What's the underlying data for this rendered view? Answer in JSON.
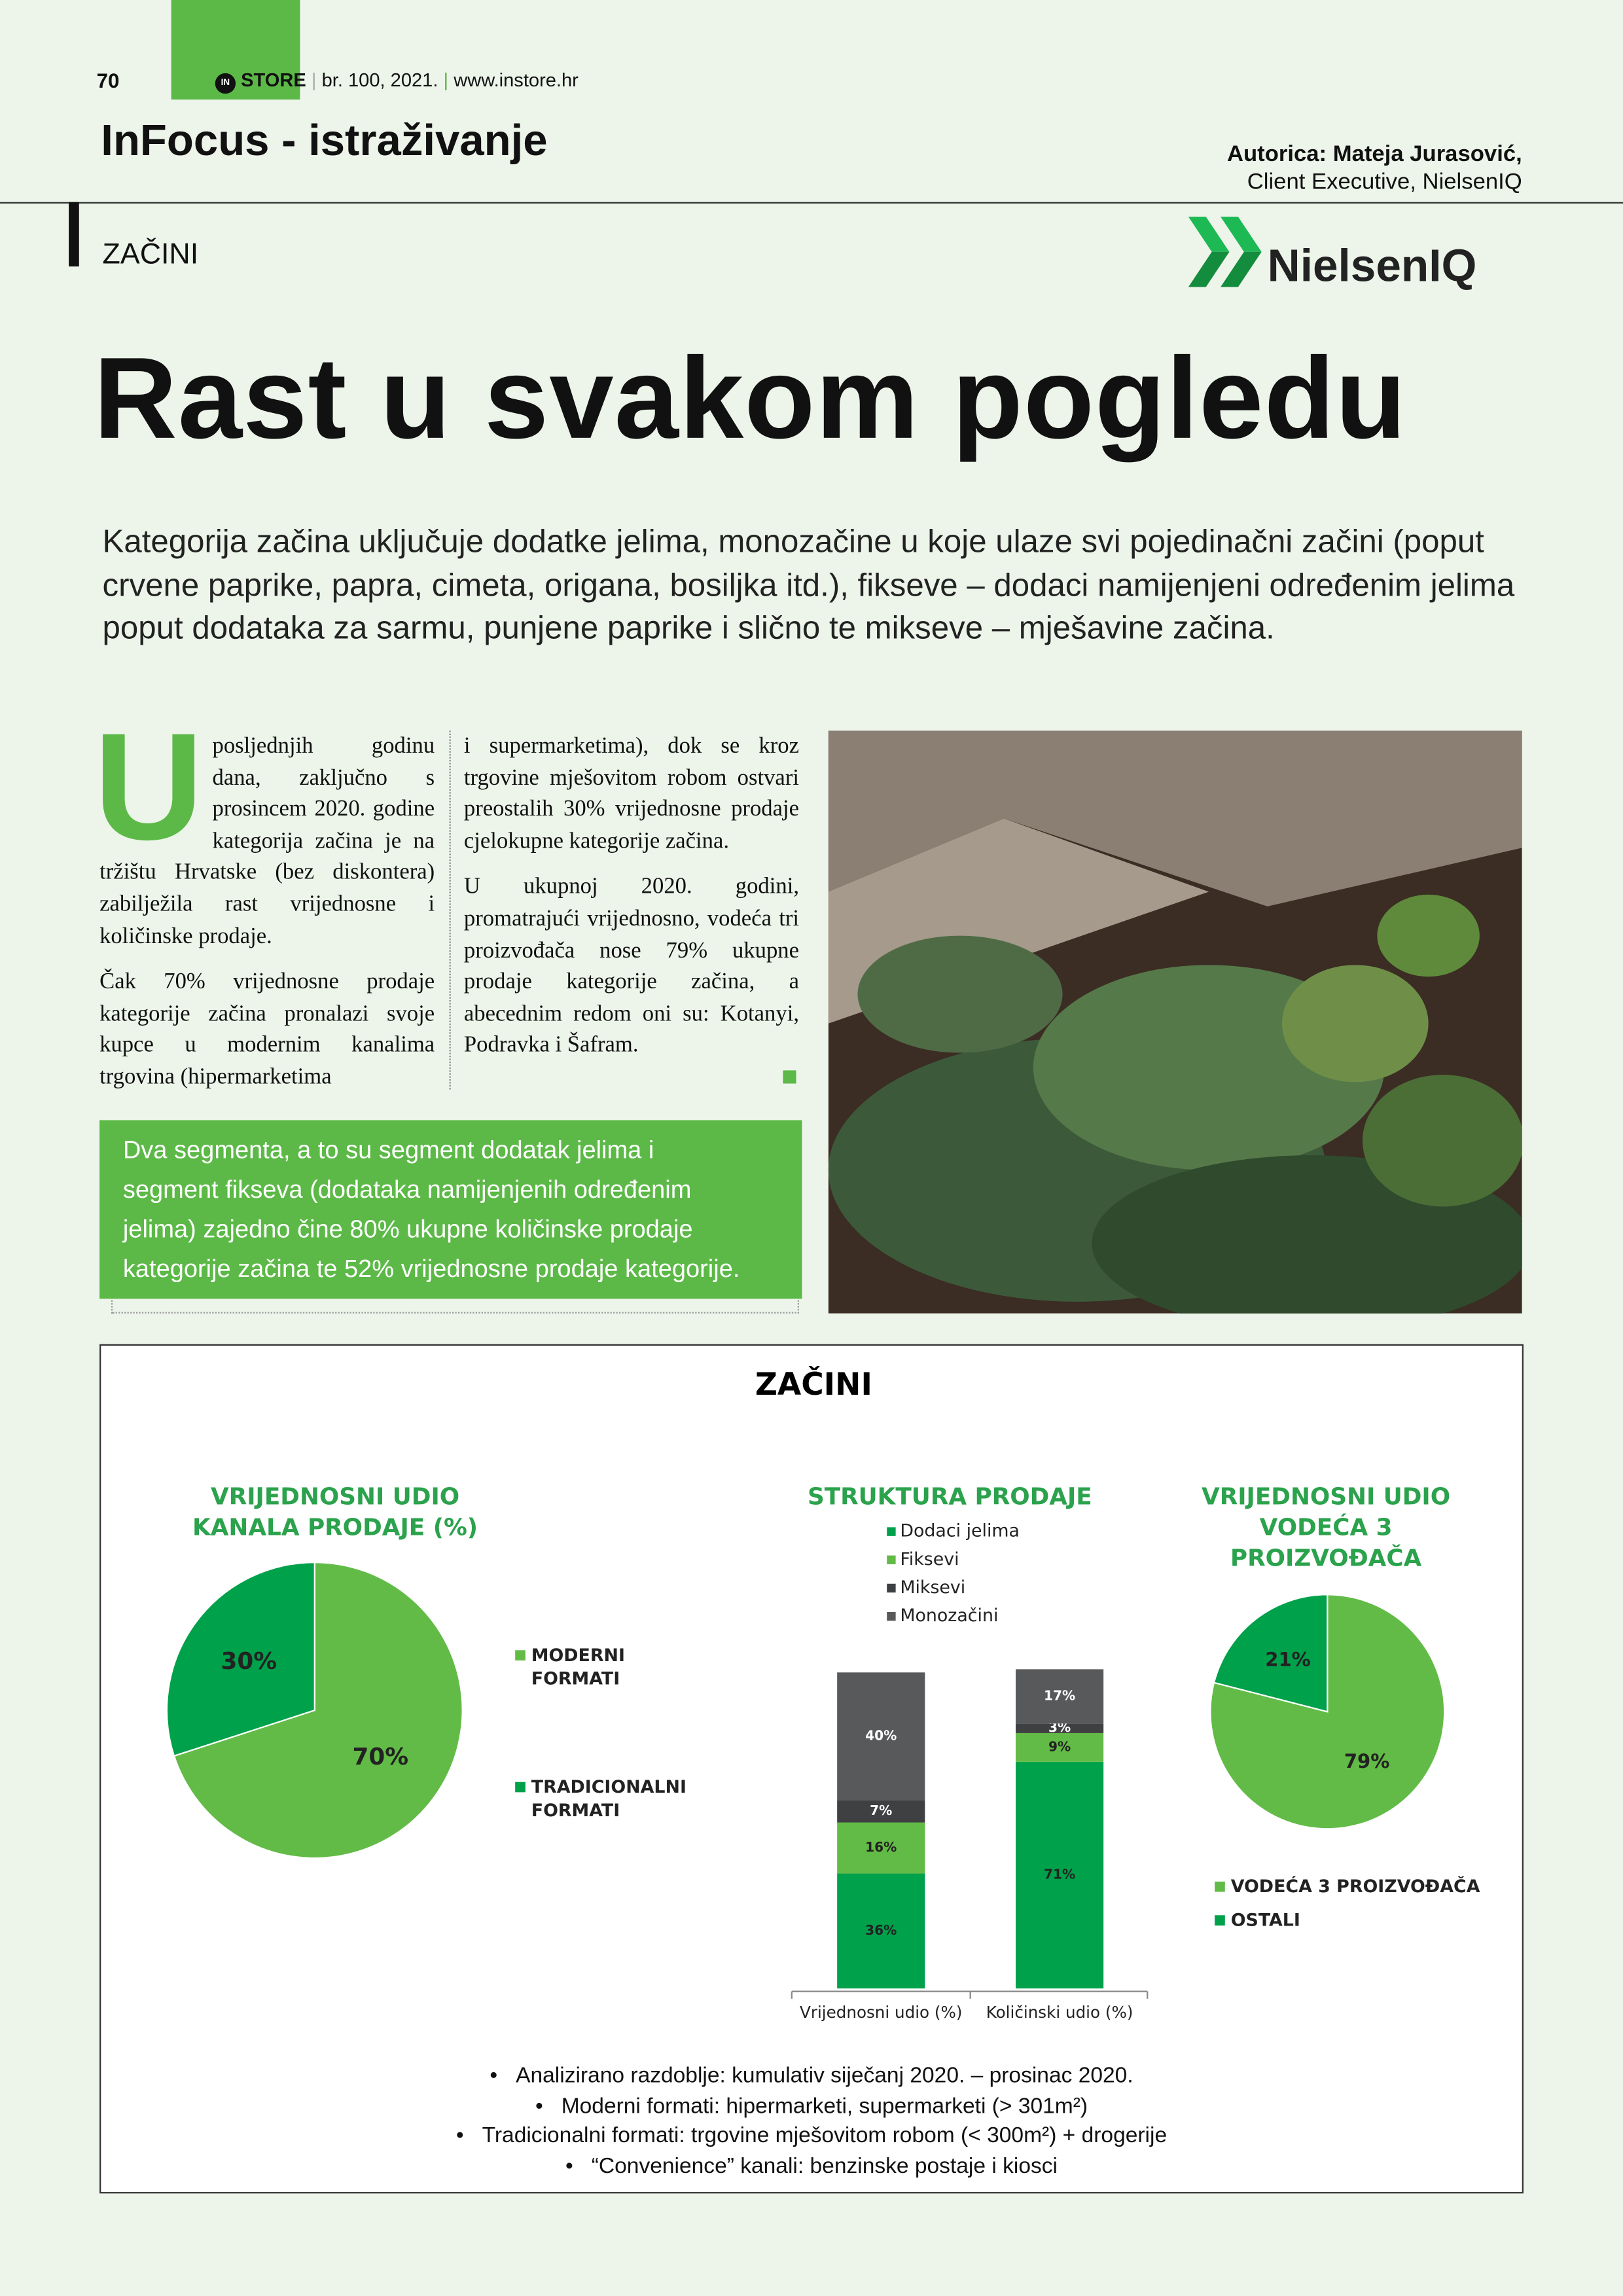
{
  "header": {
    "page_number": "70",
    "logo_in": "IN",
    "logo_store": "STORE",
    "issue": "br. 100, 2021.",
    "website": "www.instore.hr",
    "section": "InFocus - istraživanje",
    "author": "Autorica: Mateja Jurasović,",
    "author_role": "Client Executive, NielsenIQ",
    "category": "ZAČINI",
    "brand": "NielsenIQ"
  },
  "article": {
    "title": "Rast u svakom pogledu",
    "lead": "Kategorija začina uključuje dodatke jelima, monozačine u koje ulaze svi pojedinačni začini (poput crvene paprike, papra, cimeta, origana, bosiljka itd.), fikseve – dodaci namijenjeni određenim jelima poput dodataka za sarmu, punjene paprike i slično te mikseve – mješavine začina.",
    "drop_cap": "U",
    "column_1": [
      "posljednjih godinu dana, zaključno s prosincem 2020. godine kategorija začina je na tržištu Hrvatske (bez diskontera) zabilježila rast vrijednosne i količinske prodaje.",
      "Čak 70% vrijednosne prodaje kategorije začina pronalazi svoje kupce u modernim kanalima trgovina (hipermarketima"
    ],
    "column_2": [
      "i supermarketima), dok se kroz trgovine mješovitom robom ostvari preostalih 30% vrijednosne prodaje cjelokupne kategorije začina.",
      "U ukupnoj 2020. godini, promatrajući vrijednosno, vodeća tri proizvođača nose 79% ukupne prodaje kategorije začina, a abecednim redom oni su: Kotanyi, Podravka i Šafram."
    ],
    "highlight": "Dva segmenta, a to su segment dodatak jelima i segment fikseva (dodataka namijenjenih određenim jelima) zajedno čine 80% ukupne količinske prodaje kategorije začina te 52% vrijednosne prodaje kategorije."
  },
  "infographic": {
    "title": "ZAČINI",
    "notes": [
      "Analizirano razdoblje: kumulativ siječanj 2020. – prosinac 2020.",
      "Moderni formati: hipermarketi, supermarketi (> 301m²)",
      "Tradicionalni formati: trgovine mješovitom robom (< 300m²) + drogerije",
      "“Convenience” kanali: benzinske postaje i kiosci"
    ]
  },
  "chart_data": [
    {
      "type": "pie",
      "title": [
        "VRIJEDNOSNI UDIO",
        "KANALA PRODAJE (%)"
      ],
      "categories": [
        [
          "MODERNI",
          "FORMATI"
        ],
        [
          "TRADICIONALNI",
          "FORMATI"
        ]
      ],
      "values": [
        70,
        30
      ],
      "value_labels": [
        "70%",
        "30%"
      ],
      "colors": [
        "#62bb46",
        "#00a14b"
      ]
    },
    {
      "type": "bar",
      "stacked": true,
      "title": [
        "STRUKTURA PRODAJE"
      ],
      "categories": [
        "Vrijednosni udio (%)",
        "Količinski udio (%)"
      ],
      "series": [
        {
          "name": "Dodaci jelima",
          "color": "#00a14b",
          "values": [
            36,
            71
          ],
          "value_labels": [
            "36%",
            "71%"
          ]
        },
        {
          "name": "Fiksevi",
          "color": "#62bb46",
          "values": [
            16,
            9
          ],
          "value_labels": [
            "16%",
            "9%"
          ]
        },
        {
          "name": "Miksevi",
          "color": "#3f4042",
          "values": [
            7,
            3
          ],
          "value_labels": [
            "7%",
            "3%"
          ]
        },
        {
          "name": "Monozačini",
          "color": "#58595b",
          "values": [
            40,
            17
          ],
          "value_labels": [
            "40%",
            "17%"
          ]
        }
      ]
    },
    {
      "type": "pie",
      "title": [
        "VRIJEDNOSNI UDIO",
        "VODEĆA 3",
        "PROIZVOĐAČA"
      ],
      "categories": [
        [
          "VODEĆA 3 PROIZVOĐAČA"
        ],
        [
          "OSTALI"
        ]
      ],
      "values": [
        79,
        21
      ],
      "value_labels": [
        "79%",
        "21%"
      ],
      "colors": [
        "#62bb46",
        "#00a14b"
      ]
    }
  ]
}
